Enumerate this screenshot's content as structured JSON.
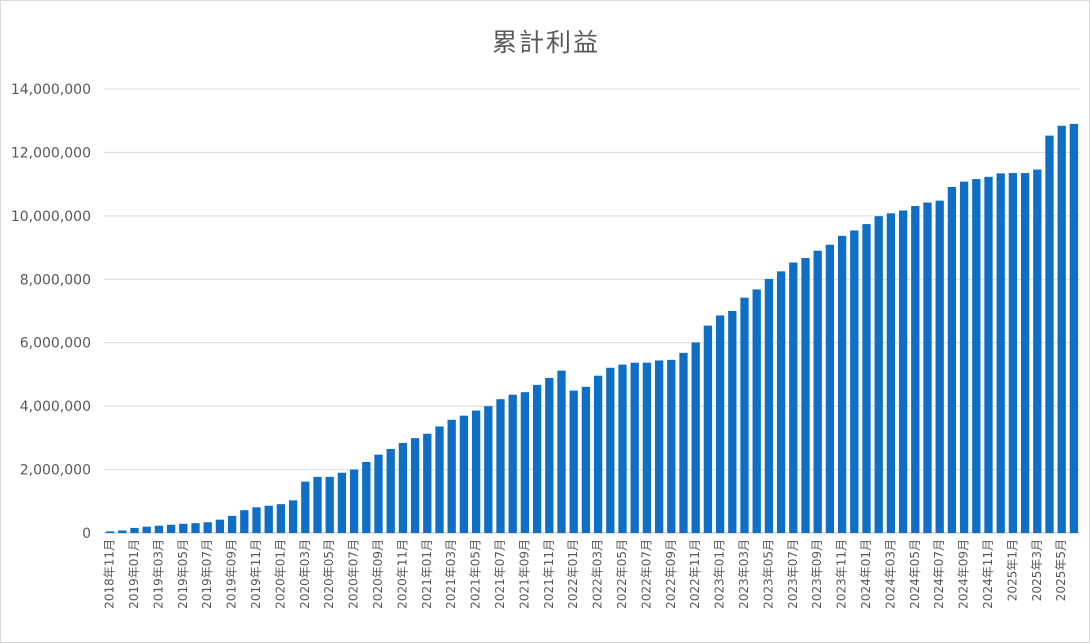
{
  "chart_data": {
    "type": "bar",
    "title": "累計利益",
    "xlabel": "",
    "ylabel": "",
    "ylim": [
      0,
      14000000
    ],
    "yticks": [
      0,
      2000000,
      4000000,
      6000000,
      8000000,
      10000000,
      12000000,
      14000000
    ],
    "ytick_labels": [
      "0",
      "2,000,000",
      "4,000,000",
      "6,000,000",
      "8,000,000",
      "10,000,000",
      "12,000,000",
      "14,000,000"
    ],
    "grid": true,
    "legend": "none",
    "bar_color": "#0F6FC6",
    "categories": [
      "2018年11月",
      "2018年12月",
      "2019年01月",
      "2019年02月",
      "2019年03月",
      "2019年04月",
      "2019年05月",
      "2019年06月",
      "2019年07月",
      "2019年08月",
      "2019年09月",
      "2019年10月",
      "2019年11月",
      "2019年12月",
      "2020年01月",
      "2020年02月",
      "2020年03月",
      "2020年04月",
      "2020年05月",
      "2020年06月",
      "2020年07月",
      "2020年08月",
      "2020年09月",
      "2020年10月",
      "2020年11月",
      "2020年12月",
      "2021年01月",
      "2021年02月",
      "2021年03月",
      "2021年04月",
      "2021年05月",
      "2021年06月",
      "2021年07月",
      "2021年08月",
      "2021年09月",
      "2021年10月",
      "2021年11月",
      "2021年12月",
      "2022年01月",
      "2022年02月",
      "2022年03月",
      "2022年04月",
      "2022年05月",
      "2022年06月",
      "2022年07月",
      "2022年08月",
      "2022年09月",
      "2022年10月",
      "2022年11月",
      "2022年12月",
      "2023年01月",
      "2023年02月",
      "2023年03月",
      "2023年04月",
      "2023年05月",
      "2023年06月",
      "2023年07月",
      "2023年08月",
      "2023年09月",
      "2023年10月",
      "2023年11月",
      "2023年12月",
      "2024年01月",
      "2024年02月",
      "2024年03月",
      "2024年04月",
      "2024年05月",
      "2024年06月",
      "2024年07月",
      "2024年08月",
      "2024年09月",
      "2024年10月",
      "2024年11月",
      "2024年12月",
      "2025年1月",
      "2025年2月",
      "2025年3月",
      "2025年4月",
      "2025年5月",
      "2025年6月"
    ],
    "tick_labels_visible": [
      "2018年11月",
      "2019年01月",
      "2019年03月",
      "2019年05月",
      "2019年07月",
      "2019年09月",
      "2019年11月",
      "2020年01月",
      "2020年03月",
      "2020年05月",
      "2020年07月",
      "2020年09月",
      "2020年11月",
      "2021年01月",
      "2021年03月",
      "2021年05月",
      "2021年07月",
      "2021年09月",
      "2021年11月",
      "2022年01月",
      "2022年03月",
      "2022年05月",
      "2022年07月",
      "2022年09月",
      "2022年11月",
      "2023年01月",
      "2023年03月",
      "2023年05月",
      "2023年07月",
      "2023年09月",
      "2023年11月",
      "2024年01月",
      "2024年03月",
      "2024年05月",
      "2024年07月",
      "2024年09月",
      "2024年11月",
      "2025年1月",
      "2025年3月",
      "2025年5月"
    ],
    "values": [
      50000,
      80000,
      160000,
      200000,
      230000,
      260000,
      290000,
      310000,
      340000,
      420000,
      540000,
      720000,
      810000,
      860000,
      910000,
      1030000,
      1620000,
      1770000,
      1770000,
      1900000,
      2000000,
      2240000,
      2470000,
      2650000,
      2840000,
      2990000,
      3130000,
      3360000,
      3570000,
      3700000,
      3860000,
      4000000,
      4220000,
      4360000,
      4440000,
      4670000,
      4890000,
      5120000,
      4490000,
      4610000,
      4960000,
      5210000,
      5310000,
      5370000,
      5370000,
      5440000,
      5460000,
      5680000,
      6010000,
      6540000,
      6860000,
      7000000,
      7420000,
      7680000,
      8010000,
      8250000,
      8530000,
      8670000,
      8900000,
      9090000,
      9370000,
      9540000,
      9740000,
      9990000,
      10080000,
      10170000,
      10310000,
      10420000,
      10480000,
      10910000,
      11080000,
      11160000,
      11230000,
      11340000,
      11350000,
      11350000,
      11460000,
      12530000,
      12840000,
      12900000
    ]
  }
}
